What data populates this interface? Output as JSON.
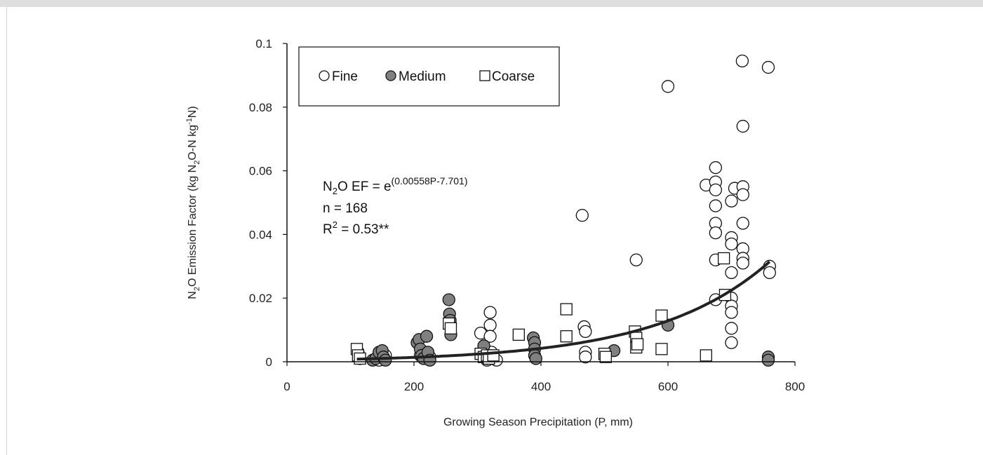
{
  "chart_data": {
    "type": "scatter",
    "xlabel": "Growing Season Precipitation (P, mm)",
    "ylabel": "N₂O Emission Factor (kg N₂O-N kg⁻¹N)",
    "ylabel_parts": {
      "a": "N",
      "b": "2",
      "c": "O Emission Factor (kg N",
      "d": "2",
      "e": "O-N kg",
      "f": "-1",
      "g": "N)"
    },
    "xlim": [
      0,
      800
    ],
    "ylim": [
      0,
      0.1
    ],
    "x_ticks": [
      "0",
      "200",
      "400",
      "600",
      "800"
    ],
    "y_ticks": [
      "0",
      "0.02",
      "0.04",
      "0.06",
      "0.08",
      "0.1"
    ],
    "grid": false,
    "legend_position": "top-left",
    "legend": [
      {
        "name": "Fine",
        "marker": "open-circle"
      },
      {
        "name": "Medium",
        "marker": "filled-circle"
      },
      {
        "name": "Coarse",
        "marker": "open-square"
      }
    ],
    "annotation": {
      "eq_lhs_a": "N",
      "eq_lhs_sub": "2",
      "eq_lhs_b": "O EF = e",
      "eq_exponent": "(0.00558P-7.701)",
      "n_line": "n = 168",
      "r2_a": "R",
      "r2_sup": "2",
      "r2_b": " = 0.53**"
    },
    "fit": {
      "type": "exponential",
      "a": 0.00558,
      "b": -7.701,
      "x_range": [
        110,
        760
      ]
    },
    "series": [
      {
        "name": "Fine",
        "marker": "open-circle",
        "points": [
          [
            112,
            0.003
          ],
          [
            115,
            0.001
          ],
          [
            140,
            0.001
          ],
          [
            145,
            0.0005
          ],
          [
            150,
            0.0015
          ],
          [
            155,
            0.002
          ],
          [
            210,
            0.002
          ],
          [
            215,
            0.003
          ],
          [
            220,
            0.001
          ],
          [
            225,
            0.0015
          ],
          [
            305,
            0.009
          ],
          [
            310,
            0.004
          ],
          [
            312,
            0.002
          ],
          [
            315,
            0.0005
          ],
          [
            320,
            0.0155
          ],
          [
            320,
            0.0115
          ],
          [
            320,
            0.008
          ],
          [
            322,
            0.003
          ],
          [
            325,
            0.001
          ],
          [
            330,
            0.0005
          ],
          [
            465,
            0.046
          ],
          [
            468,
            0.011
          ],
          [
            470,
            0.0095
          ],
          [
            470,
            0.003
          ],
          [
            470,
            0.0015
          ],
          [
            550,
            0.032
          ],
          [
            600,
            0.0865
          ],
          [
            660,
            0.0555
          ],
          [
            675,
            0.061
          ],
          [
            675,
            0.0565
          ],
          [
            675,
            0.054
          ],
          [
            675,
            0.049
          ],
          [
            675,
            0.0435
          ],
          [
            675,
            0.0405
          ],
          [
            675,
            0.032
          ],
          [
            675,
            0.0195
          ],
          [
            700,
            0.0505
          ],
          [
            705,
            0.0545
          ],
          [
            700,
            0.039
          ],
          [
            700,
            0.037
          ],
          [
            700,
            0.028
          ],
          [
            700,
            0.02
          ],
          [
            700,
            0.0175
          ],
          [
            700,
            0.0155
          ],
          [
            700,
            0.0105
          ],
          [
            700,
            0.006
          ],
          [
            717,
            0.0945
          ],
          [
            718,
            0.074
          ],
          [
            718,
            0.055
          ],
          [
            718,
            0.0525
          ],
          [
            718,
            0.0435
          ],
          [
            718,
            0.0355
          ],
          [
            718,
            0.0325
          ],
          [
            718,
            0.031
          ],
          [
            758,
            0.0925
          ],
          [
            760,
            0.03
          ],
          [
            760,
            0.028
          ]
        ]
      },
      {
        "name": "Medium",
        "marker": "filled-circle",
        "points": [
          [
            135,
            0.0005
          ],
          [
            140,
            0.001
          ],
          [
            145,
            0.003
          ],
          [
            150,
            0.0035
          ],
          [
            152,
            0.0015
          ],
          [
            155,
            0.0005
          ],
          [
            205,
            0.006
          ],
          [
            208,
            0.007
          ],
          [
            210,
            0.004
          ],
          [
            212,
            0.002
          ],
          [
            215,
            0.001
          ],
          [
            220,
            0.008
          ],
          [
            222,
            0.003
          ],
          [
            225,
            0.0005
          ],
          [
            255,
            0.0195
          ],
          [
            256,
            0.015
          ],
          [
            257,
            0.013
          ],
          [
            258,
            0.0085
          ],
          [
            310,
            0.005
          ],
          [
            312,
            0.002
          ],
          [
            315,
            0.001
          ],
          [
            388,
            0.0075
          ],
          [
            390,
            0.006
          ],
          [
            390,
            0.004
          ],
          [
            390,
            0.002
          ],
          [
            392,
            0.001
          ],
          [
            515,
            0.0035
          ],
          [
            600,
            0.0115
          ],
          [
            758,
            0.0015
          ],
          [
            758,
            0.0005
          ]
        ]
      },
      {
        "name": "Coarse",
        "marker": "open-square",
        "points": [
          [
            110,
            0.004
          ],
          [
            112,
            0.002
          ],
          [
            115,
            0.001
          ],
          [
            255,
            0.012
          ],
          [
            258,
            0.0105
          ],
          [
            305,
            0.0025
          ],
          [
            310,
            0.0015
          ],
          [
            315,
            0.002
          ],
          [
            318,
            0.001
          ],
          [
            325,
            0.002
          ],
          [
            365,
            0.0085
          ],
          [
            440,
            0.0165
          ],
          [
            440,
            0.008
          ],
          [
            500,
            0.0025
          ],
          [
            502,
            0.0015
          ],
          [
            548,
            0.0095
          ],
          [
            550,
            0.0075
          ],
          [
            550,
            0.0045
          ],
          [
            552,
            0.0055
          ],
          [
            590,
            0.0145
          ],
          [
            590,
            0.004
          ],
          [
            660,
            0.002
          ],
          [
            688,
            0.0325
          ],
          [
            690,
            0.021
          ]
        ]
      }
    ]
  }
}
